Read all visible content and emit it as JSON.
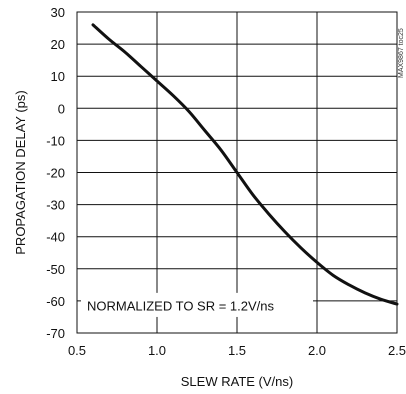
{
  "chart_data": {
    "type": "line",
    "xlabel": "SLEW RATE (V/ns)",
    "ylabel": "PROPAGATION DELAY (ps)",
    "annotation": "NORMALIZED TO SR = 1.2V/ns",
    "watermark": "MAX9867 toc25",
    "xlim": [
      0.5,
      2.5
    ],
    "ylim": [
      -70,
      30
    ],
    "x_ticks": [
      0.5,
      1.0,
      1.5,
      2.0,
      2.5
    ],
    "x_tick_labels": [
      "0.5",
      "1.0",
      "1.5",
      "2.0",
      "2.5"
    ],
    "y_ticks": [
      30,
      20,
      10,
      0,
      -10,
      -20,
      -30,
      -40,
      -50,
      -60,
      -70
    ],
    "y_tick_labels": [
      "30",
      "20",
      "10",
      "0",
      "-10",
      "-20",
      "-30",
      "-40",
      "-50",
      "-60",
      "-70"
    ],
    "grid": true,
    "line_color": "#111111",
    "series": [
      {
        "x": [
          0.6,
          0.7,
          0.8,
          0.9,
          1.0,
          1.1,
          1.2,
          1.3,
          1.4,
          1.5,
          1.6,
          1.7,
          1.8,
          1.9,
          2.0,
          2.1,
          2.2,
          2.3,
          2.4,
          2.5
        ],
        "y": [
          26,
          21.5,
          17.5,
          13,
          8.5,
          4,
          -1,
          -7,
          -13,
          -20,
          -27,
          -33,
          -38.5,
          -43.5,
          -48,
          -52,
          -55,
          -57.5,
          -59.5,
          -61
        ]
      }
    ]
  }
}
